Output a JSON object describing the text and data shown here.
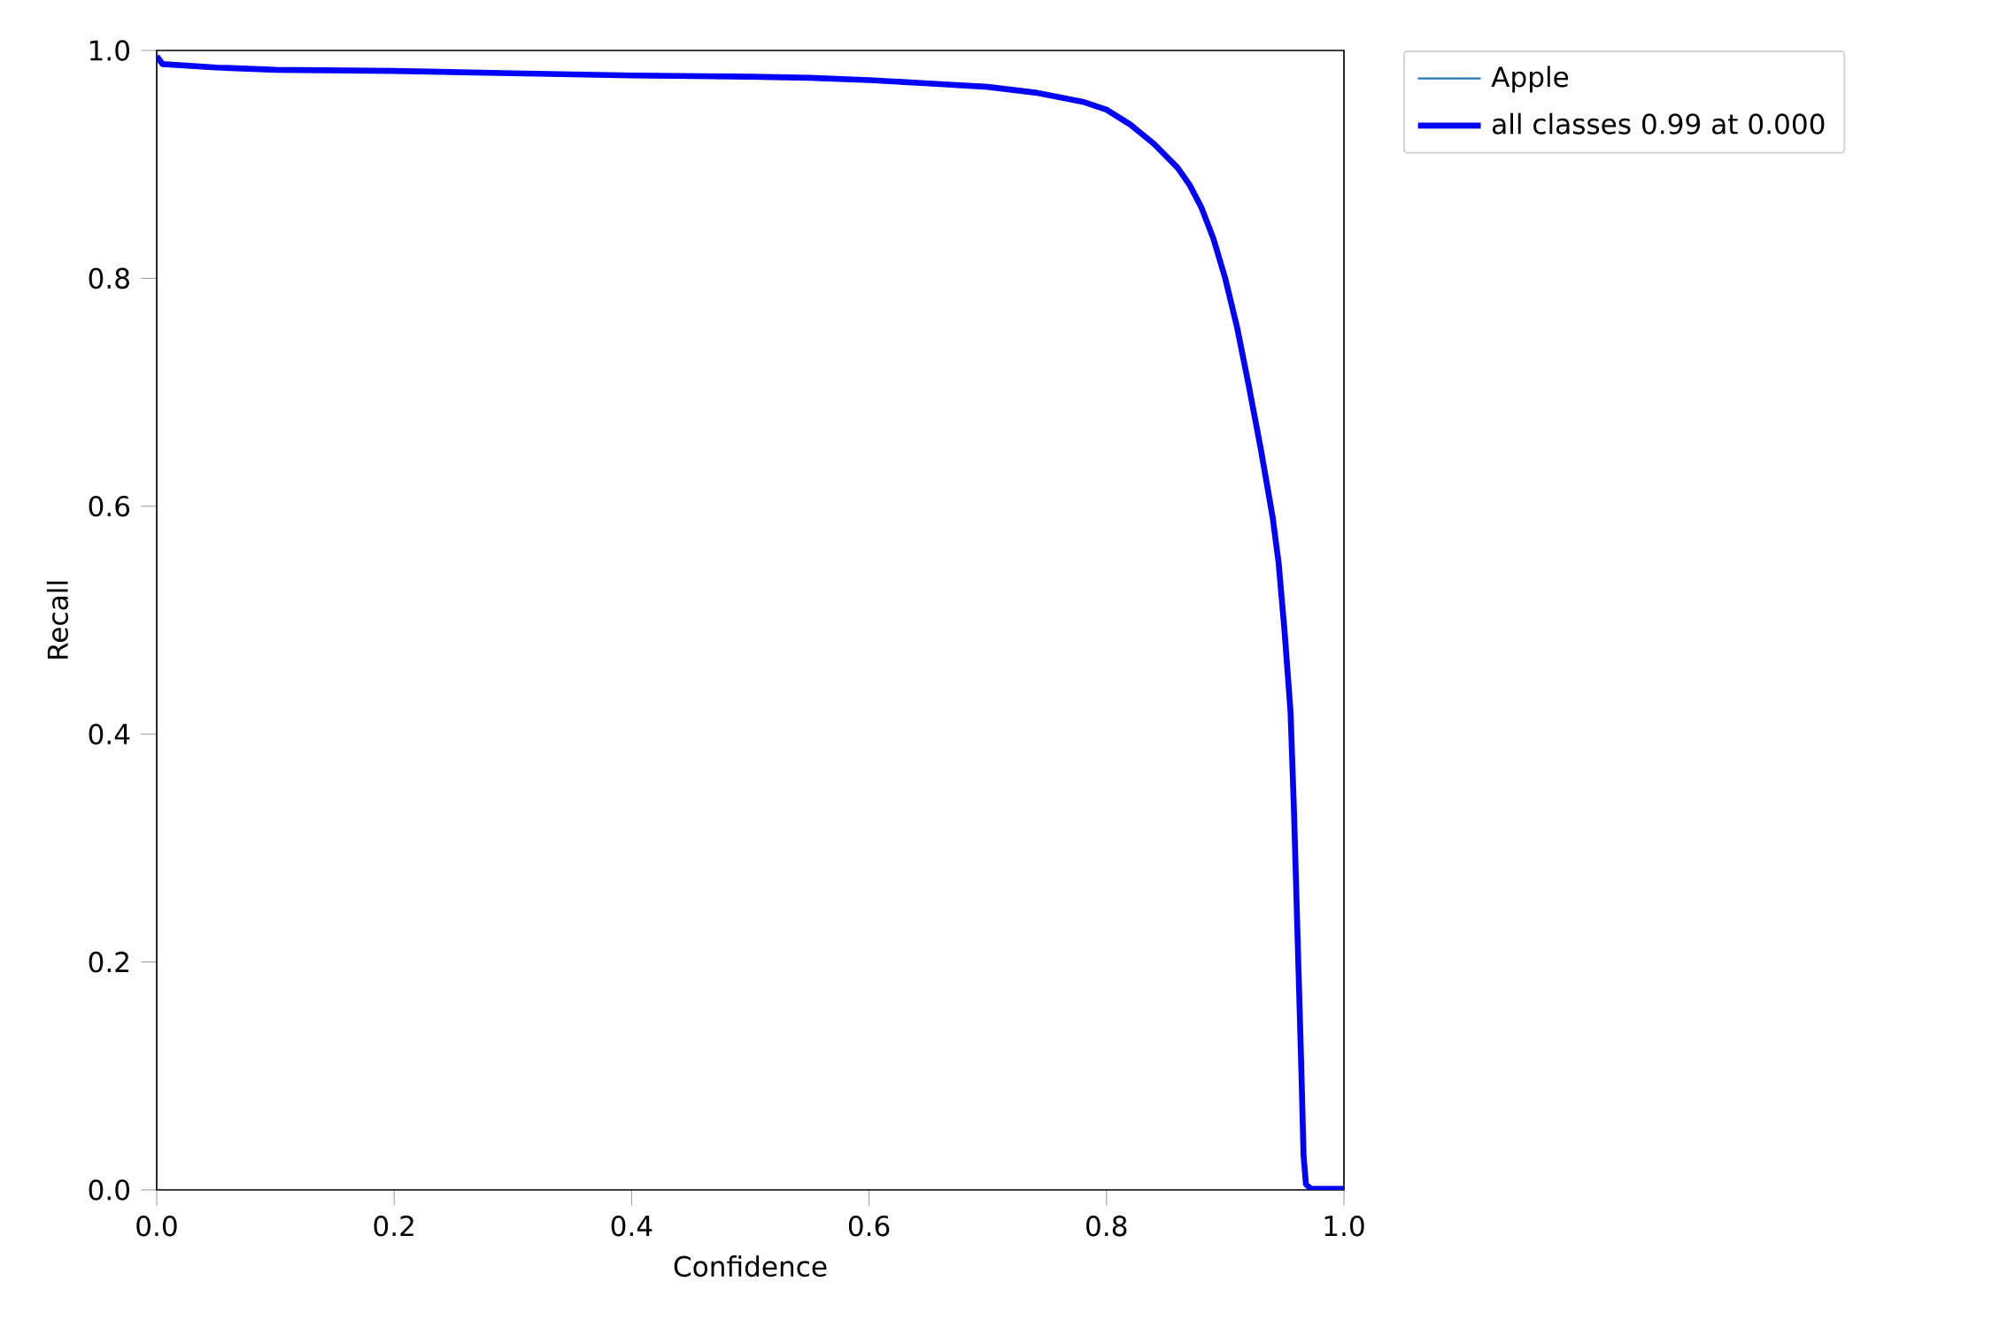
{
  "chart_data": {
    "type": "line",
    "xlabel": "Confidence",
    "ylabel": "Recall",
    "x": [
      0,
      0.005,
      0.05,
      0.1,
      0.2,
      0.3,
      0.4,
      0.5,
      0.55,
      0.6,
      0.65,
      0.7,
      0.74,
      0.78,
      0.8,
      0.82,
      0.84,
      0.86,
      0.87,
      0.88,
      0.89,
      0.9,
      0.91,
      0.92,
      0.93,
      0.94,
      0.945,
      0.95,
      0.955,
      0.958,
      0.961,
      0.964,
      0.966,
      0.968,
      0.972,
      1.0
    ],
    "series": [
      {
        "name": "Apple",
        "color": "#1f77b4",
        "values": [
          null,
          null,
          null,
          null,
          null,
          null,
          null,
          null,
          null,
          null,
          null,
          null,
          null,
          null,
          null,
          null,
          null,
          null,
          null,
          null,
          null,
          null,
          null,
          null,
          null,
          null,
          null,
          null,
          null,
          null,
          null,
          null,
          null,
          null,
          null,
          null
        ]
      },
      {
        "name": "all classes 0.99 at 0.000",
        "color": "#0000ff",
        "values": [
          0.995,
          0.988,
          0.985,
          0.983,
          0.982,
          0.98,
          0.978,
          0.977,
          0.976,
          0.974,
          0.971,
          0.968,
          0.963,
          0.955,
          0.948,
          0.935,
          0.918,
          0.897,
          0.882,
          0.862,
          0.835,
          0.8,
          0.757,
          0.705,
          0.65,
          0.59,
          0.55,
          0.49,
          0.42,
          0.33,
          0.22,
          0.11,
          0.03,
          0.005,
          0.001,
          0.001
        ]
      }
    ],
    "xlim": [
      0,
      1
    ],
    "ylim": [
      0,
      1
    ],
    "xticks": [
      {
        "value": 0,
        "label": "0.0"
      },
      {
        "value": 0.2,
        "label": "0.2"
      },
      {
        "value": 0.4,
        "label": "0.4"
      },
      {
        "value": 0.6,
        "label": "0.6"
      },
      {
        "value": 0.8,
        "label": "0.8"
      },
      {
        "value": 1,
        "label": "1.0"
      }
    ],
    "yticks": [
      {
        "value": 0,
        "label": "0.0"
      },
      {
        "value": 0.2,
        "label": "0.2"
      },
      {
        "value": 0.4,
        "label": "0.4"
      },
      {
        "value": 0.6,
        "label": "0.6"
      },
      {
        "value": 0.8,
        "label": "0.8"
      },
      {
        "value": 1,
        "label": "1.0"
      }
    ],
    "legend": "top right",
    "grid": false
  }
}
